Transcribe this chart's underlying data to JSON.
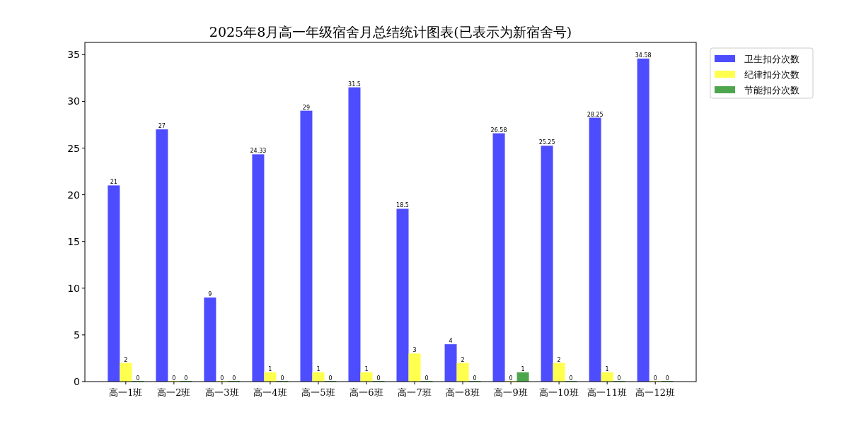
{
  "chart_data": {
    "type": "bar",
    "title": "2025年8月高一年级宿舍月总结统计图表(已表示为新宿舍号)",
    "categories": [
      "高一1班",
      "高一2班",
      "高一3班",
      "高一4班",
      "高一5班",
      "高一6班",
      "高一7班",
      "高一8班",
      "高一9班",
      "高一10班",
      "高一11班",
      "高一12班"
    ],
    "series": [
      {
        "name": "卫生扣分次数",
        "color": "#4d4dff",
        "values": [
          21,
          27,
          9,
          24.33,
          29,
          31.5,
          18.5,
          4,
          26.58,
          25.25,
          28.25,
          34.58
        ]
      },
      {
        "name": "纪律扣分次数",
        "color": "#ffff4d",
        "values": [
          2,
          0,
          0,
          1,
          1,
          1,
          3,
          2,
          0,
          2,
          1,
          0
        ]
      },
      {
        "name": "节能扣分次数",
        "color": "#4da64d",
        "values": [
          0,
          0,
          0,
          0,
          0,
          0,
          0,
          0,
          1,
          0,
          0,
          0
        ]
      }
    ],
    "ylim": [
      0,
      36.31
    ],
    "yticks": [
      0,
      5,
      10,
      15,
      20,
      25,
      30,
      35
    ],
    "data_labels": true,
    "grid": false,
    "legend": "top right"
  }
}
